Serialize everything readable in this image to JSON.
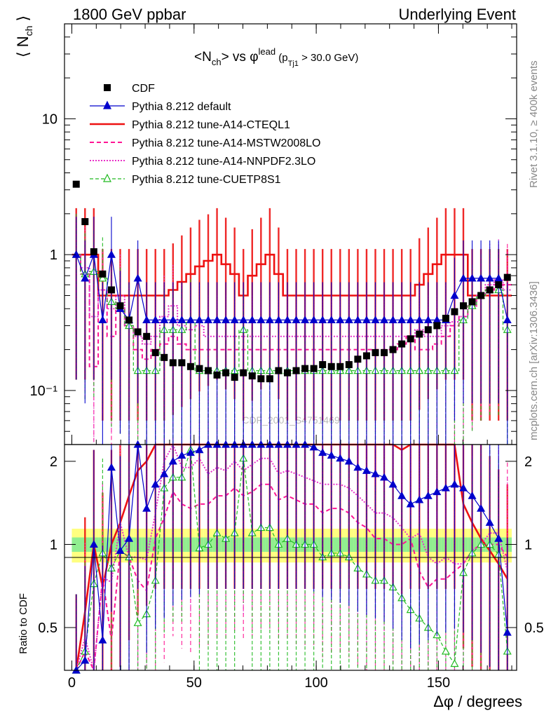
{
  "header": {
    "left": "1800 GeV ppbar",
    "right": "Underlying Event"
  },
  "side": {
    "rivet": "Rivet 3.1.10, ≥ 400k events",
    "mcplots": "mcplots.cern.ch [arXiv:1306.3436]"
  },
  "watermark": "CDF_2001_S4751469",
  "colors": {
    "cdf": "#000000",
    "default": "#0000cc",
    "cteql1": "#ee1111",
    "mstw": "#ff1493",
    "nnpdf": "#e830c8",
    "cuetp8s1": "#22bb22",
    "band_outer": "#ffff80",
    "band_inner": "#90ee90"
  },
  "chart_data": {
    "type": "scatter",
    "title": "<N_ch> vs φ^lead (p_Tj1 > 30.0 GeV)",
    "title_parts": {
      "main": "<N",
      "sub1": "ch",
      "mid": "> vs φ",
      "sup": "lead",
      "paren_open": " (p",
      "sub2": "Tj1",
      "paren_close": " > 30.0 GeV)"
    },
    "ylabel": "⟨N_ch⟩",
    "ylabel_parts": {
      "main": "⟨ N",
      "sub": "ch",
      "close": " ⟩"
    },
    "ratio_ylabel": "Ratio to CDF",
    "xlabel": "Δφ / degrees",
    "xlim": [
      -3,
      182
    ],
    "ylim": [
      0.04,
      50
    ],
    "yscale": "log",
    "ratio_ylim": [
      0.35,
      2.3
    ],
    "x_ticks": [
      0,
      50,
      100,
      150
    ],
    "y_ticks": [
      {
        "v": 10,
        "label": "10"
      },
      {
        "v": 1,
        "label": "1"
      },
      {
        "v": 0.1,
        "label": "10⁻¹"
      }
    ],
    "ratio_ticks": [
      {
        "v": 2,
        "label": "2"
      },
      {
        "v": 1,
        "label": "1"
      },
      {
        "v": 0.5,
        "label": "0.5"
      }
    ],
    "x": [
      1.8,
      5.4,
      9,
      12.6,
      16.2,
      19.8,
      23.4,
      27,
      30.6,
      34.2,
      37.8,
      41.4,
      45,
      48.6,
      52.2,
      55.8,
      59.4,
      63,
      66.6,
      70.2,
      73.8,
      77.4,
      81,
      84.6,
      88.2,
      91.8,
      95.4,
      99,
      102.6,
      106.2,
      109.8,
      113.4,
      117,
      120.6,
      124.2,
      127.8,
      131.4,
      135,
      138.6,
      142.2,
      145.8,
      149.4,
      153,
      156.6,
      160.2,
      163.8,
      167.4,
      171,
      174.6,
      178.2
    ],
    "legend": [
      {
        "key": "cdf",
        "label": "CDF"
      },
      {
        "key": "default",
        "label": "Pythia 8.212 default"
      },
      {
        "key": "cteql1",
        "label": "Pythia 8.212 tune-A14-CTEQL1"
      },
      {
        "key": "mstw",
        "label": "Pythia 8.212 tune-A14-MSTW2008LO"
      },
      {
        "key": "nnpdf",
        "label": "Pythia 8.212 tune-A14-NNPDF2.3LO"
      },
      {
        "key": "cuetp8s1",
        "label": "Pythia 8.212 tune-CUETP8S1"
      }
    ],
    "cdf": [
      3.3,
      1.75,
      1.05,
      0.72,
      0.55,
      0.42,
      0.33,
      0.27,
      0.25,
      0.19,
      0.175,
      0.16,
      0.16,
      0.15,
      0.145,
      0.14,
      0.13,
      0.135,
      0.125,
      0.135,
      0.128,
      0.122,
      0.122,
      0.14,
      0.135,
      0.14,
      0.145,
      0.145,
      0.155,
      0.15,
      0.15,
      0.155,
      0.17,
      0.18,
      0.19,
      0.19,
      0.2,
      0.22,
      0.24,
      0.26,
      0.28,
      0.3,
      0.34,
      0.38,
      0.42,
      0.45,
      0.5,
      0.55,
      0.6,
      0.68
    ],
    "default": [
      1.0,
      0.67,
      1.0,
      0.33,
      1.0,
      0.4,
      0.33,
      0.67,
      0.33,
      0.33,
      0.33,
      0.33,
      0.33,
      0.33,
      0.33,
      0.33,
      0.33,
      0.33,
      0.33,
      0.33,
      0.33,
      0.33,
      0.33,
      0.33,
      0.33,
      0.33,
      0.33,
      0.33,
      0.33,
      0.33,
      0.33,
      0.33,
      0.33,
      0.33,
      0.33,
      0.33,
      0.33,
      0.33,
      0.33,
      0.33,
      0.33,
      0.33,
      0.33,
      0.5,
      0.67,
      0.67,
      0.67,
      0.67,
      0.67,
      0.33
    ],
    "cteql1": [
      1.0,
      1.0,
      1.0,
      0.5,
      0.5,
      0.5,
      0.5,
      0.5,
      0.5,
      0.5,
      0.5,
      0.55,
      0.63,
      0.72,
      0.82,
      0.9,
      1.0,
      0.85,
      0.72,
      0.5,
      0.7,
      0.85,
      1.0,
      0.72,
      0.5,
      0.5,
      0.5,
      0.5,
      0.5,
      0.5,
      0.5,
      0.5,
      0.5,
      0.5,
      0.5,
      0.5,
      0.5,
      0.5,
      0.5,
      0.6,
      0.72,
      0.85,
      1.0,
      1.0,
      1.0,
      0.5,
      0.5,
      0.5,
      0.5,
      0.5
    ],
    "mstw": [
      1.0,
      0.72,
      0.15,
      0.55,
      0.25,
      0.4,
      0.3,
      0.2,
      0.17,
      0.2,
      0.22,
      0.25,
      0.22,
      0.2,
      0.2,
      0.2,
      0.2,
      0.2,
      0.2,
      0.2,
      0.2,
      0.2,
      0.2,
      0.2,
      0.2,
      0.2,
      0.2,
      0.2,
      0.2,
      0.2,
      0.2,
      0.2,
      0.2,
      0.2,
      0.2,
      0.2,
      0.2,
      0.22,
      0.25,
      0.2,
      0.2,
      0.22,
      0.25,
      0.3,
      0.35,
      0.42,
      0.5,
      0.55,
      0.6,
      0.6
    ],
    "nnpdf": [
      1.0,
      0.8,
      0.35,
      0.55,
      0.4,
      0.5,
      0.3,
      0.25,
      0.22,
      0.25,
      0.35,
      0.42,
      0.3,
      0.28,
      0.3,
      0.25,
      0.25,
      0.25,
      0.25,
      0.25,
      0.25,
      0.25,
      0.25,
      0.25,
      0.25,
      0.25,
      0.25,
      0.25,
      0.25,
      0.25,
      0.25,
      0.25,
      0.25,
      0.25,
      0.25,
      0.25,
      0.25,
      0.25,
      0.25,
      0.28,
      0.25,
      0.25,
      0.3,
      0.32,
      0.35,
      0.42,
      0.5,
      0.6,
      0.65,
      0.55
    ],
    "cuetp8s1": [
      1.0,
      0.72,
      0.75,
      0.67,
      0.45,
      0.4,
      0.3,
      0.14,
      0.14,
      0.14,
      0.28,
      0.28,
      0.28,
      0.33,
      0.14,
      0.14,
      0.14,
      0.14,
      0.14,
      0.28,
      0.14,
      0.14,
      0.14,
      0.14,
      0.14,
      0.14,
      0.14,
      0.14,
      0.14,
      0.14,
      0.14,
      0.14,
      0.14,
      0.14,
      0.14,
      0.14,
      0.14,
      0.14,
      0.14,
      0.14,
      0.14,
      0.14,
      0.14,
      0.14,
      0.33,
      0.42,
      0.5,
      0.55,
      0.55,
      0.28
    ],
    "ratio_default": [
      0.3,
      0.38,
      1.0,
      0.45,
      1.9,
      0.95,
      1.05,
      2.3,
      1.35,
      1.65,
      1.8,
      2.0,
      2.1,
      2.15,
      2.2,
      2.3,
      2.3,
      2.3,
      2.3,
      2.3,
      2.3,
      2.3,
      2.3,
      2.3,
      2.3,
      2.3,
      2.3,
      2.25,
      2.15,
      2.1,
      2.05,
      2.0,
      1.9,
      1.85,
      1.8,
      1.75,
      1.65,
      1.5,
      1.4,
      1.45,
      1.5,
      1.55,
      1.6,
      1.65,
      1.6,
      1.5,
      1.35,
      1.2,
      1.05,
      0.48
    ],
    "ratio_cteql1": [
      0.3,
      0.57,
      1.0,
      0.7,
      1.0,
      1.2,
      1.5,
      1.85,
      2.0,
      2.3,
      2.3,
      2.3,
      2.3,
      2.3,
      2.3,
      2.3,
      2.3,
      2.3,
      2.3,
      2.3,
      2.3,
      2.3,
      2.3,
      2.3,
      2.3,
      2.3,
      2.3,
      2.3,
      2.3,
      2.3,
      2.3,
      2.3,
      2.3,
      2.3,
      2.3,
      2.3,
      2.3,
      2.2,
      2.3,
      2.3,
      2.3,
      2.3,
      2.3,
      2.3,
      1.4,
      1.2,
      1.05,
      0.95,
      0.85,
      0.75
    ],
    "ratio_mstw": [
      0.3,
      0.41,
      0.14,
      0.76,
      0.45,
      0.95,
      0.9,
      0.74,
      0.68,
      1.05,
      1.25,
      1.55,
      1.4,
      1.35,
      1.4,
      1.4,
      1.5,
      1.5,
      1.6,
      1.5,
      1.55,
      1.65,
      1.65,
      1.45,
      1.5,
      1.45,
      1.4,
      1.4,
      1.3,
      1.35,
      1.35,
      1.3,
      1.2,
      1.15,
      1.05,
      1.05,
      1.0,
      1.0,
      1.05,
      0.8,
      0.7,
      0.75,
      0.75,
      0.8,
      0.85,
      0.95,
      1.0,
      1.0,
      1.0,
      0.9
    ],
    "ratio_nnpdf": [
      0.3,
      0.46,
      0.33,
      0.76,
      0.73,
      1.2,
      0.9,
      0.9,
      0.88,
      1.3,
      2.0,
      2.3,
      1.9,
      1.9,
      2.05,
      1.8,
      1.9,
      1.85,
      2.0,
      1.85,
      1.95,
      2.05,
      2.05,
      1.8,
      1.85,
      1.8,
      1.75,
      1.7,
      1.65,
      1.65,
      1.65,
      1.6,
      1.5,
      1.4,
      1.3,
      1.3,
      1.25,
      1.15,
      1.05,
      1.1,
      0.9,
      0.85,
      0.9,
      0.85,
      0.85,
      0.95,
      1.0,
      1.1,
      1.1,
      0.8
    ],
    "ratio_cuetp8s1": [
      0.3,
      0.41,
      0.72,
      0.93,
      0.82,
      0.95,
      0.9,
      0.52,
      0.56,
      0.74,
      1.6,
      1.75,
      1.75,
      2.2,
      0.97,
      1.0,
      1.1,
      1.05,
      1.1,
      2.05,
      1.1,
      1.15,
      1.15,
      1.0,
      1.05,
      1.0,
      1.0,
      1.0,
      0.9,
      0.93,
      0.93,
      0.9,
      0.82,
      0.78,
      0.74,
      0.74,
      0.7,
      0.64,
      0.58,
      0.54,
      0.5,
      0.47,
      0.41,
      0.37,
      0.79,
      0.93,
      1.0,
      1.0,
      0.92,
      0.41
    ],
    "band_outer": [
      0.14,
      0.14,
      0.14,
      0.14,
      0.14,
      0.14,
      0.14,
      0.14,
      0.14,
      0.14,
      0.14,
      0.14,
      0.14,
      0.14,
      0.14,
      0.14,
      0.14,
      0.14,
      0.14,
      0.14,
      0.14,
      0.14,
      0.14,
      0.14,
      0.14,
      0.14,
      0.14,
      0.14,
      0.14,
      0.14,
      0.14,
      0.14,
      0.14,
      0.14,
      0.14,
      0.14,
      0.14,
      0.14,
      0.14,
      0.14,
      0.14,
      0.14,
      0.14,
      0.14,
      0.14,
      0.14,
      0.14,
      0.14,
      0.14,
      0.14
    ],
    "band_inner": [
      0.06,
      0.06,
      0.06,
      0.06,
      0.06,
      0.06,
      0.06,
      0.06,
      0.06,
      0.06,
      0.06,
      0.06,
      0.06,
      0.06,
      0.06,
      0.06,
      0.06,
      0.06,
      0.06,
      0.06,
      0.06,
      0.06,
      0.06,
      0.06,
      0.06,
      0.06,
      0.06,
      0.06,
      0.06,
      0.06,
      0.06,
      0.06,
      0.06,
      0.06,
      0.06,
      0.06,
      0.06,
      0.06,
      0.06,
      0.06,
      0.06,
      0.06,
      0.06,
      0.06,
      0.06,
      0.06,
      0.06,
      0.06,
      0.06,
      0.06
    ]
  }
}
